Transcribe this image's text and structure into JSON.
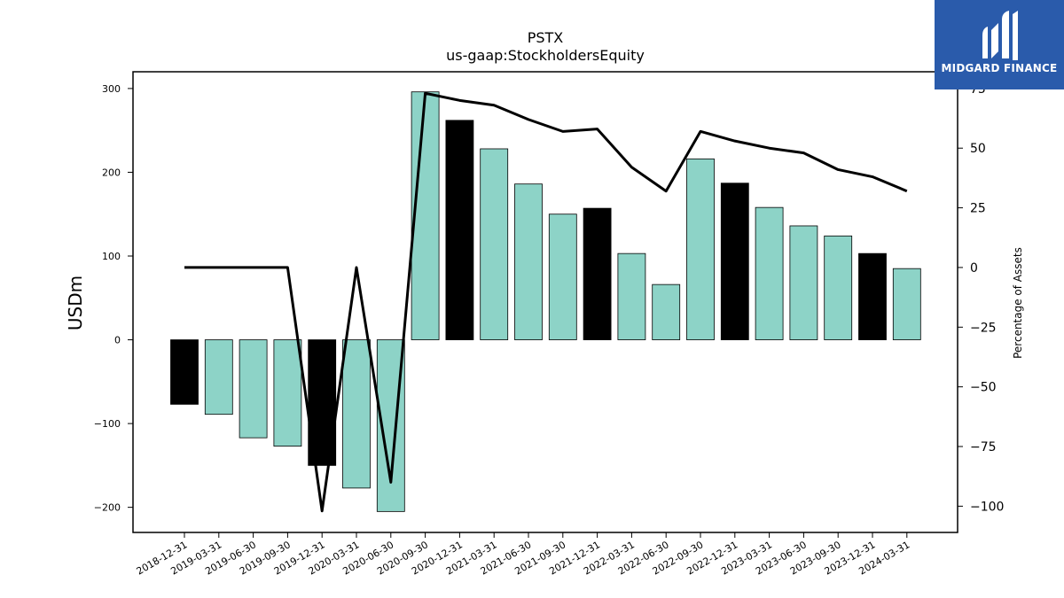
{
  "chart_data": {
    "type": "bar+line",
    "title": "PSTX",
    "subtitle": "us-gaap:StockholdersEquity",
    "ylabel": "USDm",
    "y2label": "Percentage of Assets",
    "ylim": [
      -230,
      320
    ],
    "y2lim": [
      -111,
      82
    ],
    "yticks": [
      -200,
      -100,
      0,
      100,
      200,
      300
    ],
    "y2ticks": [
      -100,
      -75,
      -50,
      -25,
      0,
      25,
      50,
      75
    ],
    "categories": [
      "2018-12-31",
      "2019-03-31",
      "2019-06-30",
      "2019-09-30",
      "2019-12-31",
      "2020-03-31",
      "2020-06-30",
      "2020-09-30",
      "2020-12-31",
      "2021-03-31",
      "2021-06-30",
      "2021-09-30",
      "2021-12-31",
      "2022-03-31",
      "2022-06-30",
      "2022-09-30",
      "2022-12-31",
      "2023-03-31",
      "2023-06-30",
      "2023-09-30",
      "2023-12-31",
      "2024-03-31"
    ],
    "bar_values": [
      -77,
      -89,
      -117,
      -127,
      -150,
      -177,
      -205,
      296,
      262,
      228,
      186,
      150,
      157,
      103,
      66,
      216,
      187,
      158,
      136,
      124,
      103,
      85
    ],
    "year_end": [
      true,
      false,
      false,
      false,
      true,
      false,
      false,
      false,
      true,
      false,
      false,
      false,
      true,
      false,
      false,
      false,
      true,
      false,
      false,
      false,
      true,
      false
    ],
    "line_values": [
      0,
      0,
      0,
      0,
      -102,
      0,
      -90,
      73,
      70,
      68,
      62,
      57,
      58,
      42,
      32,
      57,
      53,
      50,
      48,
      41,
      38,
      32
    ],
    "colors": {
      "bar": "#8dd3c7",
      "bar_year_end": "#000000",
      "line": "#000000"
    },
    "grid": false,
    "legend": "none"
  },
  "logo": {
    "text": "MIDGARD FINANCE",
    "icon": "midgard-logo-icon"
  }
}
